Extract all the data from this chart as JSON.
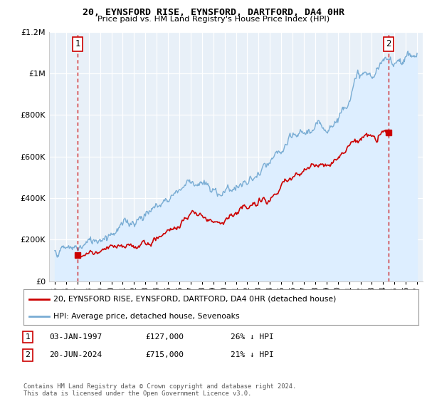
{
  "title": "20, EYNSFORD RISE, EYNSFORD, DARTFORD, DA4 0HR",
  "subtitle": "Price paid vs. HM Land Registry's House Price Index (HPI)",
  "legend_line1": "20, EYNSFORD RISE, EYNSFORD, DARTFORD, DA4 0HR (detached house)",
  "legend_line2": "HPI: Average price, detached house, Sevenoaks",
  "point1_label": "1",
  "point1_date": "03-JAN-1997",
  "point1_price": "£127,000",
  "point1_hpi": "26% ↓ HPI",
  "point2_label": "2",
  "point2_date": "20-JUN-2024",
  "point2_price": "£715,000",
  "point2_hpi": "21% ↓ HPI",
  "footer": "Contains HM Land Registry data © Crown copyright and database right 2024.\nThis data is licensed under the Open Government Licence v3.0.",
  "red_color": "#cc0000",
  "blue_color": "#7aadd4",
  "blue_fill_color": "#ddeeff",
  "bg_color": "#e8f0f8",
  "grid_color": "#ffffff",
  "ylim": [
    0,
    1200000
  ],
  "xlim_start": 1994.5,
  "xlim_end": 2027.5,
  "point1_x": 1997.04,
  "point1_y": 127000,
  "point2_x": 2024.47,
  "point2_y": 715000
}
